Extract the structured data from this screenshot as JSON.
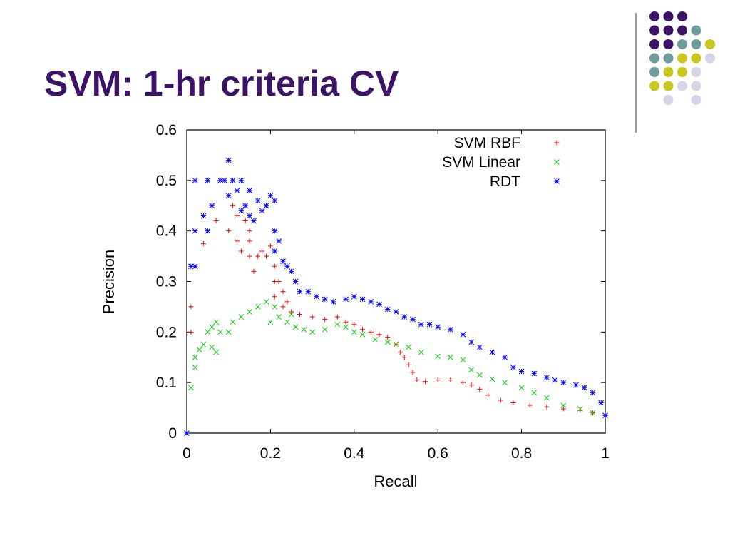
{
  "slide": {
    "title": "SVM: 1-hr criteria CV"
  },
  "colors": {
    "title": "#3b1466",
    "dot_palette": [
      "#3b1466",
      "#6f9c9c",
      "#c8c81e",
      "#d5d5e8"
    ],
    "divider": "#999999"
  },
  "decor": {
    "dot_grid": [
      [
        0,
        0,
        0,
        null
      ],
      [
        0,
        0,
        0,
        1
      ],
      [
        0,
        0,
        1,
        1,
        2
      ],
      [
        1,
        1,
        2,
        2,
        3
      ],
      [
        1,
        2,
        2,
        3
      ],
      [
        2,
        2,
        3,
        3
      ],
      [
        null,
        3,
        null,
        3
      ]
    ]
  },
  "chart_data": {
    "type": "scatter",
    "title": "",
    "xlabel": "Recall",
    "ylabel": "Precision",
    "xlim": [
      0,
      1
    ],
    "ylim": [
      0,
      0.6
    ],
    "xticks": [
      "0",
      "0.2",
      "0.4",
      "0.6",
      "0.8",
      "1"
    ],
    "yticks": [
      "0",
      "0.1",
      "0.2",
      "0.3",
      "0.4",
      "0.5",
      "0.6"
    ],
    "legend_position": "top-right",
    "series": [
      {
        "name": "SVM RBF",
        "marker": "+",
        "color": "#ff0000",
        "points": [
          [
            0,
            0
          ],
          [
            0.01,
            0.25
          ],
          [
            0.01,
            0.2
          ],
          [
            0.04,
            0.375
          ],
          [
            0.07,
            0.42
          ],
          [
            0.1,
            0.4
          ],
          [
            0.11,
            0.45
          ],
          [
            0.12,
            0.43
          ],
          [
            0.12,
            0.38
          ],
          [
            0.13,
            0.36
          ],
          [
            0.14,
            0.42
          ],
          [
            0.15,
            0.4
          ],
          [
            0.15,
            0.38
          ],
          [
            0.15,
            0.35
          ],
          [
            0.16,
            0.32
          ],
          [
            0.17,
            0.35
          ],
          [
            0.18,
            0.36
          ],
          [
            0.19,
            0.35
          ],
          [
            0.2,
            0.37
          ],
          [
            0.21,
            0.33
          ],
          [
            0.21,
            0.3
          ],
          [
            0.21,
            0.27
          ],
          [
            0.22,
            0.3
          ],
          [
            0.23,
            0.28
          ],
          [
            0.23,
            0.25
          ],
          [
            0.24,
            0.26
          ],
          [
            0.25,
            0.24
          ],
          [
            0.27,
            0.235
          ],
          [
            0.3,
            0.23
          ],
          [
            0.33,
            0.225
          ],
          [
            0.36,
            0.23
          ],
          [
            0.38,
            0.22
          ],
          [
            0.4,
            0.215
          ],
          [
            0.42,
            0.205
          ],
          [
            0.44,
            0.2
          ],
          [
            0.46,
            0.195
          ],
          [
            0.48,
            0.19
          ],
          [
            0.5,
            0.175
          ],
          [
            0.51,
            0.16
          ],
          [
            0.52,
            0.15
          ],
          [
            0.53,
            0.135
          ],
          [
            0.54,
            0.12
          ],
          [
            0.55,
            0.105
          ],
          [
            0.57,
            0.102
          ],
          [
            0.6,
            0.105
          ],
          [
            0.63,
            0.105
          ],
          [
            0.66,
            0.1
          ],
          [
            0.68,
            0.095
          ],
          [
            0.7,
            0.087
          ],
          [
            0.72,
            0.075
          ],
          [
            0.75,
            0.065
          ],
          [
            0.78,
            0.06
          ],
          [
            0.82,
            0.055
          ],
          [
            0.86,
            0.052
          ],
          [
            0.9,
            0.048
          ],
          [
            0.94,
            0.045
          ],
          [
            0.97,
            0.04
          ],
          [
            1,
            0.035
          ]
        ]
      },
      {
        "name": "SVM Linear",
        "marker": "x",
        "color": "#00cc00",
        "points": [
          [
            0,
            0
          ],
          [
            0.01,
            0.09
          ],
          [
            0.02,
            0.13
          ],
          [
            0.02,
            0.15
          ],
          [
            0.03,
            0.165
          ],
          [
            0.04,
            0.175
          ],
          [
            0.05,
            0.2
          ],
          [
            0.06,
            0.21
          ],
          [
            0.06,
            0.17
          ],
          [
            0.07,
            0.22
          ],
          [
            0.07,
            0.16
          ],
          [
            0.08,
            0.2
          ],
          [
            0.1,
            0.2
          ],
          [
            0.11,
            0.22
          ],
          [
            0.13,
            0.23
          ],
          [
            0.15,
            0.24
          ],
          [
            0.17,
            0.25
          ],
          [
            0.19,
            0.26
          ],
          [
            0.2,
            0.22
          ],
          [
            0.21,
            0.25
          ],
          [
            0.22,
            0.23
          ],
          [
            0.24,
            0.22
          ],
          [
            0.25,
            0.235
          ],
          [
            0.26,
            0.21
          ],
          [
            0.28,
            0.205
          ],
          [
            0.3,
            0.2
          ],
          [
            0.33,
            0.205
          ],
          [
            0.36,
            0.215
          ],
          [
            0.38,
            0.21
          ],
          [
            0.4,
            0.2
          ],
          [
            0.42,
            0.195
          ],
          [
            0.45,
            0.185
          ],
          [
            0.48,
            0.18
          ],
          [
            0.5,
            0.175
          ],
          [
            0.53,
            0.17
          ],
          [
            0.56,
            0.16
          ],
          [
            0.6,
            0.152
          ],
          [
            0.63,
            0.15
          ],
          [
            0.66,
            0.145
          ],
          [
            0.68,
            0.125
          ],
          [
            0.7,
            0.115
          ],
          [
            0.73,
            0.107
          ],
          [
            0.76,
            0.1
          ],
          [
            0.8,
            0.09
          ],
          [
            0.83,
            0.08
          ],
          [
            0.86,
            0.07
          ],
          [
            0.9,
            0.055
          ],
          [
            0.94,
            0.048
          ],
          [
            0.97,
            0.04
          ],
          [
            1,
            0.035
          ]
        ]
      },
      {
        "name": "RDT",
        "marker": "*",
        "color": "#0000ff",
        "points": [
          [
            0,
            0
          ],
          [
            0.01,
            0.33
          ],
          [
            0.02,
            0.33
          ],
          [
            0.02,
            0.4
          ],
          [
            0.02,
            0.5
          ],
          [
            0.04,
            0.43
          ],
          [
            0.05,
            0.4
          ],
          [
            0.05,
            0.5
          ],
          [
            0.06,
            0.45
          ],
          [
            0.08,
            0.5
          ],
          [
            0.09,
            0.5
          ],
          [
            0.1,
            0.54
          ],
          [
            0.1,
            0.47
          ],
          [
            0.11,
            0.5
          ],
          [
            0.12,
            0.48
          ],
          [
            0.13,
            0.5
          ],
          [
            0.13,
            0.44
          ],
          [
            0.14,
            0.45
          ],
          [
            0.15,
            0.48
          ],
          [
            0.15,
            0.43
          ],
          [
            0.16,
            0.42
          ],
          [
            0.17,
            0.46
          ],
          [
            0.18,
            0.44
          ],
          [
            0.19,
            0.45
          ],
          [
            0.2,
            0.47
          ],
          [
            0.21,
            0.46
          ],
          [
            0.21,
            0.4
          ],
          [
            0.21,
            0.36
          ],
          [
            0.22,
            0.38
          ],
          [
            0.23,
            0.34
          ],
          [
            0.24,
            0.33
          ],
          [
            0.25,
            0.32
          ],
          [
            0.26,
            0.3
          ],
          [
            0.27,
            0.28
          ],
          [
            0.29,
            0.28
          ],
          [
            0.31,
            0.27
          ],
          [
            0.33,
            0.265
          ],
          [
            0.35,
            0.26
          ],
          [
            0.38,
            0.265
          ],
          [
            0.4,
            0.27
          ],
          [
            0.42,
            0.265
          ],
          [
            0.44,
            0.26
          ],
          [
            0.46,
            0.255
          ],
          [
            0.48,
            0.245
          ],
          [
            0.5,
            0.24
          ],
          [
            0.52,
            0.23
          ],
          [
            0.54,
            0.225
          ],
          [
            0.56,
            0.215
          ],
          [
            0.58,
            0.215
          ],
          [
            0.6,
            0.21
          ],
          [
            0.63,
            0.205
          ],
          [
            0.66,
            0.195
          ],
          [
            0.68,
            0.18
          ],
          [
            0.7,
            0.17
          ],
          [
            0.73,
            0.16
          ],
          [
            0.76,
            0.15
          ],
          [
            0.78,
            0.13
          ],
          [
            0.8,
            0.122
          ],
          [
            0.83,
            0.118
          ],
          [
            0.86,
            0.11
          ],
          [
            0.88,
            0.105
          ],
          [
            0.9,
            0.1
          ],
          [
            0.93,
            0.095
          ],
          [
            0.95,
            0.09
          ],
          [
            0.97,
            0.08
          ],
          [
            0.99,
            0.06
          ],
          [
            1,
            0.035
          ]
        ]
      }
    ]
  }
}
